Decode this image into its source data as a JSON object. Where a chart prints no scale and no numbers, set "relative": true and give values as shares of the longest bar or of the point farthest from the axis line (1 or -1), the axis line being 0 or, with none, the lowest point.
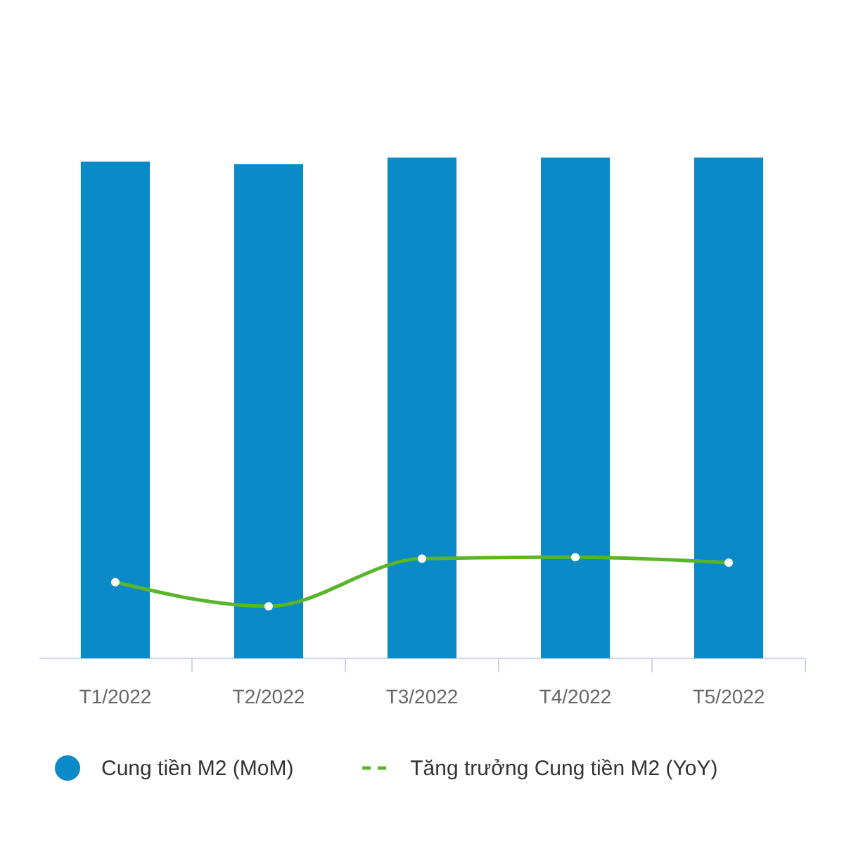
{
  "chart_data": {
    "type": "bar",
    "relative": true,
    "categories": [
      "T1/2022",
      "T2/2022",
      "T3/2022",
      "T4/2022",
      "T5/2022"
    ],
    "legend": "bottom",
    "series": [
      {
        "name": "Cung tiền M2 (MoM)",
        "color": "#0a8ac6",
        "values": [
          0.992,
          0.987,
          1,
          1,
          1
        ]
      },
      {
        "name": "Tăng trưởng Cung tiền M2 (YoY)",
        "type": "line",
        "color": "#5ab52a",
        "marker": "circle",
        "values": [
          0.152,
          0.104,
          0.199,
          0.202,
          0.191
        ]
      }
    ]
  }
}
